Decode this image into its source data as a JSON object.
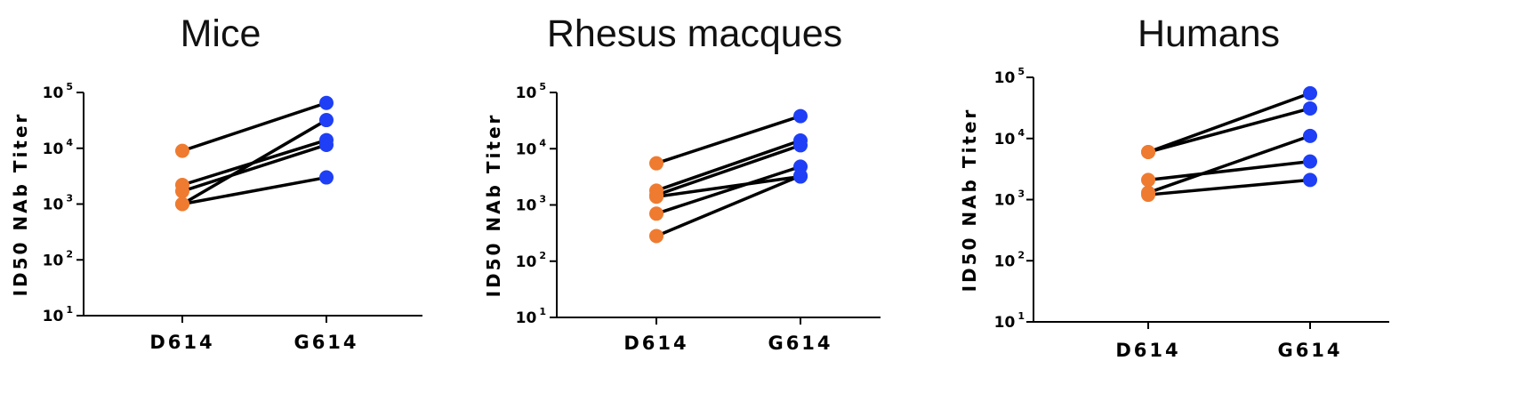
{
  "colors": {
    "d614": "#EE7B30",
    "g614": "#1E3FF5",
    "line": "#000000"
  },
  "chart_data": [
    {
      "type": "scatter",
      "title": "Mice",
      "ylabel": "ID50 NAb Titer",
      "yscale": "log",
      "ylim": [
        10,
        100000
      ],
      "yticks": [
        {
          "base": "10",
          "exp": "1"
        },
        {
          "base": "10",
          "exp": "2"
        },
        {
          "base": "10",
          "exp": "3"
        },
        {
          "base": "10",
          "exp": "4"
        },
        {
          "base": "10",
          "exp": "5"
        }
      ],
      "categories": [
        "D614",
        "G614"
      ],
      "pairs": [
        [
          9000,
          65000
        ],
        [
          2200,
          14000
        ],
        [
          1700,
          11500
        ],
        [
          1000,
          3000
        ],
        [
          1000,
          32000
        ]
      ]
    },
    {
      "type": "scatter",
      "title": "Rhesus macques",
      "ylabel": "ID50 NAb Titer",
      "yscale": "log",
      "ylim": [
        10,
        100000
      ],
      "yticks": [
        {
          "base": "10",
          "exp": "1"
        },
        {
          "base": "10",
          "exp": "2"
        },
        {
          "base": "10",
          "exp": "3"
        },
        {
          "base": "10",
          "exp": "4"
        },
        {
          "base": "10",
          "exp": "5"
        }
      ],
      "categories": [
        "D614",
        "G614"
      ],
      "pairs": [
        [
          5500,
          38000
        ],
        [
          1800,
          14000
        ],
        [
          1500,
          11500
        ],
        [
          1400,
          3200
        ],
        [
          700,
          4800
        ],
        [
          280,
          3300
        ]
      ]
    },
    {
      "type": "scatter",
      "title": "Humans",
      "ylabel": "ID50 NAb Titer",
      "yscale": "log",
      "ylim": [
        10,
        100000
      ],
      "yticks": [
        {
          "base": "10",
          "exp": "1"
        },
        {
          "base": "10",
          "exp": "2"
        },
        {
          "base": "10",
          "exp": "3"
        },
        {
          "base": "10",
          "exp": "4"
        },
        {
          "base": "10",
          "exp": "5"
        }
      ],
      "categories": [
        "D614",
        "G614"
      ],
      "pairs": [
        [
          6000,
          55000
        ],
        [
          6000,
          31000
        ],
        [
          2100,
          4200
        ],
        [
          1300,
          11000
        ],
        [
          1200,
          2100
        ]
      ]
    }
  ]
}
